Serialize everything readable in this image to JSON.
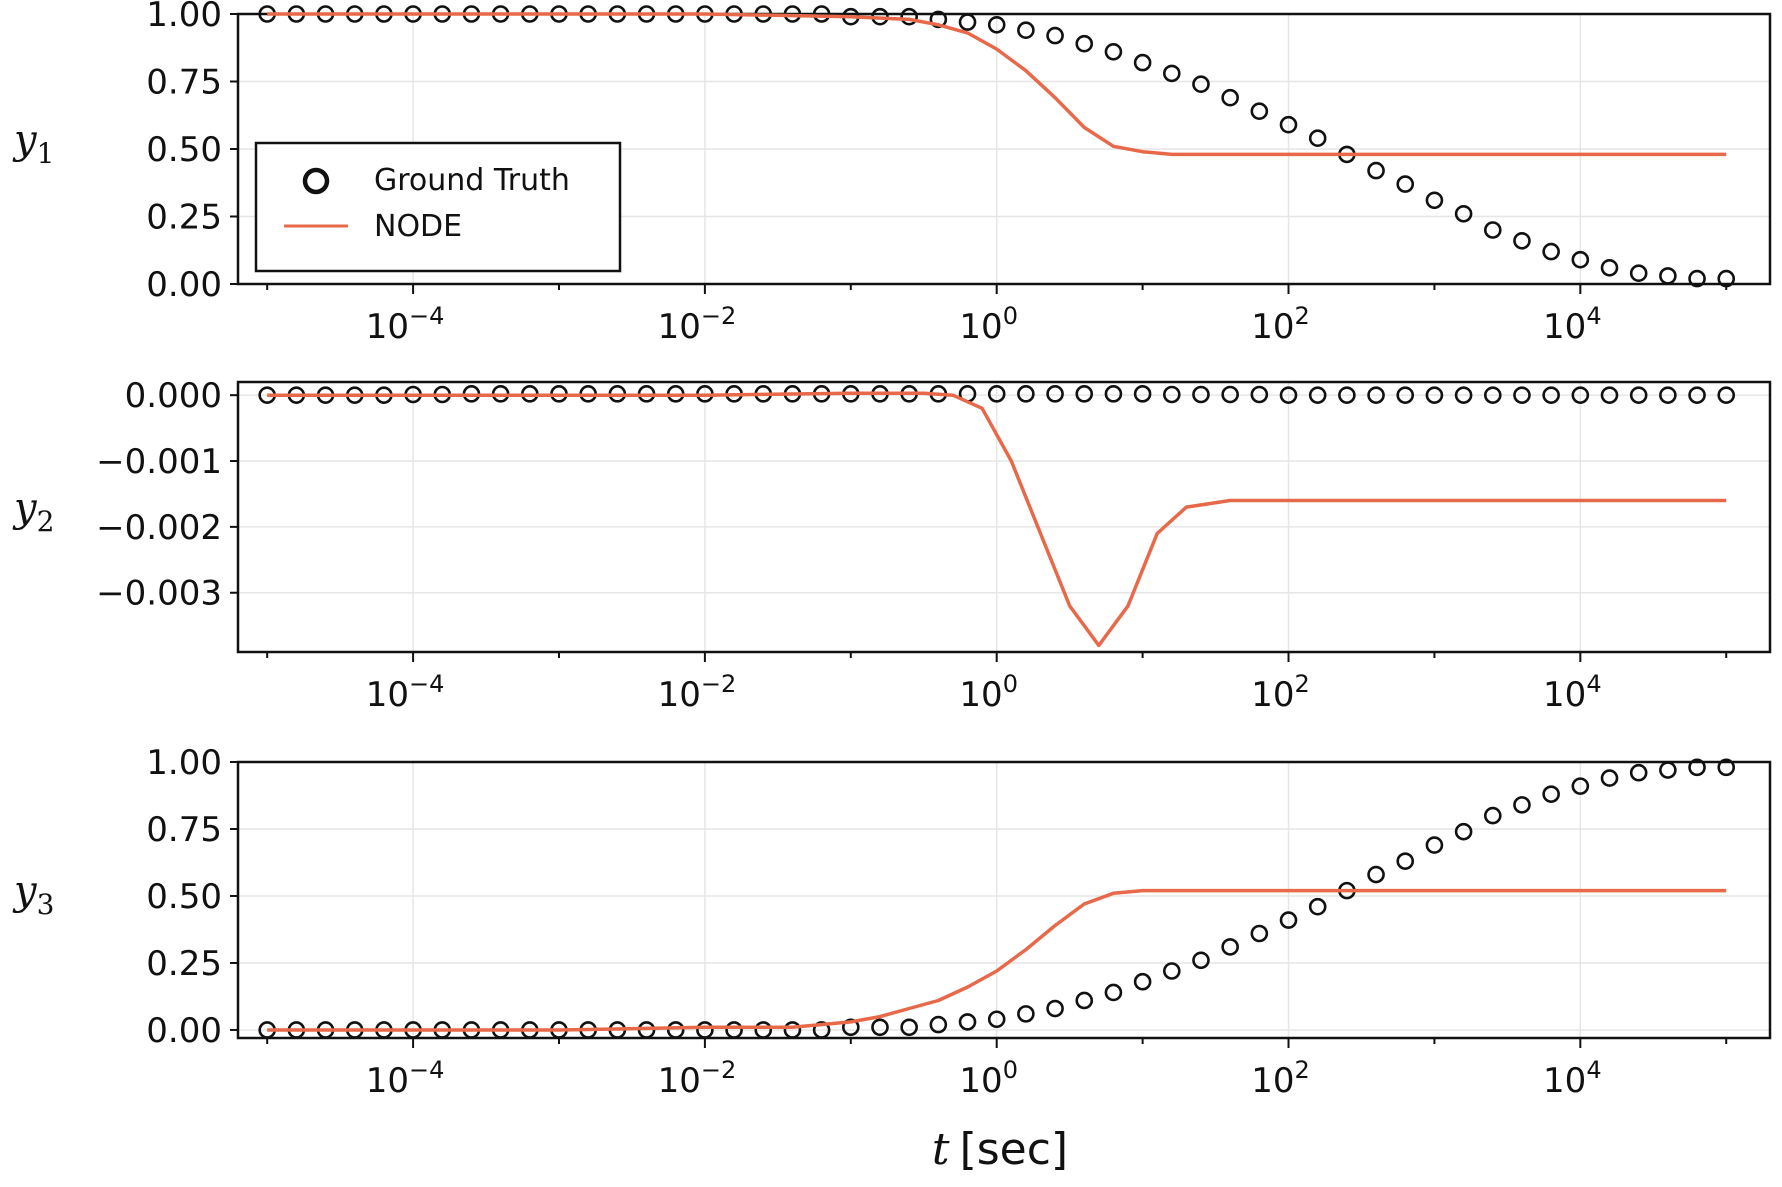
{
  "figure": {
    "xlabel_var": "t",
    "xlabel_unit": "[sec]",
    "legend": {
      "ground_truth": "Ground Truth",
      "node": "NODE"
    }
  },
  "colors": {
    "ground_truth": "#111111",
    "node": "#e8694a",
    "grid": "#e6e6e6"
  },
  "chart_data": [
    {
      "type": "line",
      "ylabel": "y",
      "ylabel_sub": "1",
      "xscale": "log",
      "xlim_log10": [
        -5.2,
        5.3
      ],
      "xticks_exp": [
        "−4",
        "−2",
        "0",
        "2",
        "4"
      ],
      "ylim": [
        0.0,
        1.0
      ],
      "yticks": [
        0.0,
        0.25,
        0.5,
        0.75,
        1.0
      ],
      "ytick_labels": [
        "0.00",
        "0.25",
        "0.50",
        "0.75",
        "1.00"
      ],
      "legend": "lower-left",
      "series": [
        {
          "name": "Ground Truth",
          "style": "markers",
          "x_log10": [
            -5,
            -4.8,
            -4.6,
            -4.4,
            -4.2,
            -4,
            -3.8,
            -3.6,
            -3.4,
            -3.2,
            -3,
            -2.8,
            -2.6,
            -2.4,
            -2.2,
            -2,
            -1.8,
            -1.6,
            -1.4,
            -1.2,
            -1,
            -0.8,
            -0.6,
            -0.4,
            -0.2,
            0,
            0.2,
            0.4,
            0.6,
            0.8,
            1,
            1.2,
            1.4,
            1.6,
            1.8,
            2,
            2.2,
            2.4,
            2.6,
            2.8,
            3,
            3.2,
            3.4,
            3.6,
            3.8,
            4,
            4.2,
            4.4,
            4.6,
            4.8,
            5
          ],
          "values": [
            1,
            1,
            1,
            1,
            1,
            1,
            1,
            1,
            1,
            1,
            1,
            1,
            1,
            1,
            1,
            1,
            1,
            1,
            1,
            1,
            0.99,
            0.99,
            0.99,
            0.98,
            0.97,
            0.96,
            0.94,
            0.92,
            0.89,
            0.86,
            0.82,
            0.78,
            0.74,
            0.69,
            0.64,
            0.59,
            0.54,
            0.48,
            0.42,
            0.37,
            0.31,
            0.26,
            0.2,
            0.16,
            0.12,
            0.09,
            0.06,
            0.04,
            0.03,
            0.02,
            0.02
          ]
        },
        {
          "name": "NODE",
          "style": "line",
          "x_log10": [
            -5,
            -4,
            -3,
            -2,
            -1,
            -0.6,
            -0.4,
            -0.2,
            0,
            0.2,
            0.4,
            0.6,
            0.8,
            1,
            1.2,
            1.6,
            2,
            3,
            4,
            5
          ],
          "values": [
            1,
            1,
            1,
            1,
            0.99,
            0.98,
            0.96,
            0.93,
            0.87,
            0.79,
            0.69,
            0.58,
            0.51,
            0.49,
            0.48,
            0.48,
            0.48,
            0.48,
            0.48,
            0.48
          ]
        }
      ]
    },
    {
      "type": "line",
      "ylabel": "y",
      "ylabel_sub": "2",
      "xscale": "log",
      "xlim_log10": [
        -5.2,
        5.3
      ],
      "xticks_exp": [
        "−4",
        "−2",
        "0",
        "2",
        "4"
      ],
      "ylim": [
        -0.0039,
        0.0002
      ],
      "yticks": [
        0.0,
        -0.001,
        -0.002,
        -0.003
      ],
      "ytick_labels": [
        "0.000",
        "−0.001",
        "−0.002",
        "−0.003"
      ],
      "series": [
        {
          "name": "Ground Truth",
          "style": "markers",
          "x_log10": [
            -5,
            -4.8,
            -4.6,
            -4.4,
            -4.2,
            -4,
            -3.8,
            -3.6,
            -3.4,
            -3.2,
            -3,
            -2.8,
            -2.6,
            -2.4,
            -2.2,
            -2,
            -1.8,
            -1.6,
            -1.4,
            -1.2,
            -1,
            -0.8,
            -0.6,
            -0.4,
            -0.2,
            0,
            0.2,
            0.4,
            0.6,
            0.8,
            1,
            1.2,
            1.4,
            1.6,
            1.8,
            2,
            2.2,
            2.4,
            2.6,
            2.8,
            3,
            3.2,
            3.4,
            3.6,
            3.8,
            4,
            4.2,
            4.4,
            4.6,
            4.8,
            5
          ],
          "values": [
            0,
            0,
            0,
            0,
            0,
            1e-05,
            1e-05,
            2e-05,
            2e-05,
            2e-05,
            2e-05,
            2e-05,
            2e-05,
            2e-05,
            2e-05,
            2e-05,
            2e-05,
            2e-05,
            2e-05,
            2e-05,
            2e-05,
            2e-05,
            2e-05,
            2e-05,
            2e-05,
            2e-05,
            2e-05,
            2e-05,
            2e-05,
            2e-05,
            2e-05,
            1e-05,
            1e-05,
            1e-05,
            1e-05,
            0,
            0,
            0,
            0,
            0,
            0,
            0,
            0,
            0,
            0,
            0,
            0,
            0,
            0,
            0,
            0
          ]
        },
        {
          "name": "NODE",
          "style": "line",
          "x_log10": [
            -5,
            -4,
            -3,
            -2,
            -1,
            -0.5,
            -0.3,
            -0.1,
            0.1,
            0.3,
            0.5,
            0.7,
            0.9,
            1.1,
            1.3,
            1.6,
            2,
            3,
            4,
            5
          ],
          "values": [
            0,
            0,
            0,
            0,
            3e-05,
            3e-05,
            0.0,
            -0.0002,
            -0.001,
            -0.0021,
            -0.0032,
            -0.0038,
            -0.0032,
            -0.0021,
            -0.0017,
            -0.0016,
            -0.0016,
            -0.0016,
            -0.0016,
            -0.0016
          ]
        }
      ]
    },
    {
      "type": "line",
      "ylabel": "y",
      "ylabel_sub": "3",
      "xscale": "log",
      "xlim_log10": [
        -5.2,
        5.3
      ],
      "xticks_exp": [
        "−4",
        "−2",
        "0",
        "2",
        "4"
      ],
      "ylim": [
        -0.03,
        1.0
      ],
      "yticks": [
        0.0,
        0.25,
        0.5,
        0.75,
        1.0
      ],
      "ytick_labels": [
        "0.00",
        "0.25",
        "0.50",
        "0.75",
        "1.00"
      ],
      "series": [
        {
          "name": "Ground Truth",
          "style": "markers",
          "x_log10": [
            -5,
            -4.8,
            -4.6,
            -4.4,
            -4.2,
            -4,
            -3.8,
            -3.6,
            -3.4,
            -3.2,
            -3,
            -2.8,
            -2.6,
            -2.4,
            -2.2,
            -2,
            -1.8,
            -1.6,
            -1.4,
            -1.2,
            -1,
            -0.8,
            -0.6,
            -0.4,
            -0.2,
            0,
            0.2,
            0.4,
            0.6,
            0.8,
            1,
            1.2,
            1.4,
            1.6,
            1.8,
            2,
            2.2,
            2.4,
            2.6,
            2.8,
            3,
            3.2,
            3.4,
            3.6,
            3.8,
            4,
            4.2,
            4.4,
            4.6,
            4.8,
            5
          ],
          "values": [
            0,
            0,
            0,
            0,
            0,
            0,
            0,
            0,
            0,
            0,
            0,
            0,
            0,
            0,
            0,
            0,
            0,
            0,
            0,
            0,
            0.01,
            0.01,
            0.01,
            0.02,
            0.03,
            0.04,
            0.06,
            0.08,
            0.11,
            0.14,
            0.18,
            0.22,
            0.26,
            0.31,
            0.36,
            0.41,
            0.46,
            0.52,
            0.58,
            0.63,
            0.69,
            0.74,
            0.8,
            0.84,
            0.88,
            0.91,
            0.94,
            0.96,
            0.97,
            0.98,
            0.98
          ]
        },
        {
          "name": "NODE",
          "style": "line",
          "x_log10": [
            -5,
            -4,
            -3,
            -2,
            -1.4,
            -1,
            -0.8,
            -0.6,
            -0.4,
            -0.2,
            0,
            0.2,
            0.4,
            0.6,
            0.8,
            1,
            1.2,
            1.6,
            2,
            3,
            4,
            5
          ],
          "values": [
            0,
            0,
            0,
            0.01,
            0.01,
            0.03,
            0.05,
            0.08,
            0.11,
            0.16,
            0.22,
            0.3,
            0.39,
            0.47,
            0.51,
            0.52,
            0.52,
            0.52,
            0.52,
            0.52,
            0.52,
            0.52
          ]
        }
      ]
    }
  ]
}
